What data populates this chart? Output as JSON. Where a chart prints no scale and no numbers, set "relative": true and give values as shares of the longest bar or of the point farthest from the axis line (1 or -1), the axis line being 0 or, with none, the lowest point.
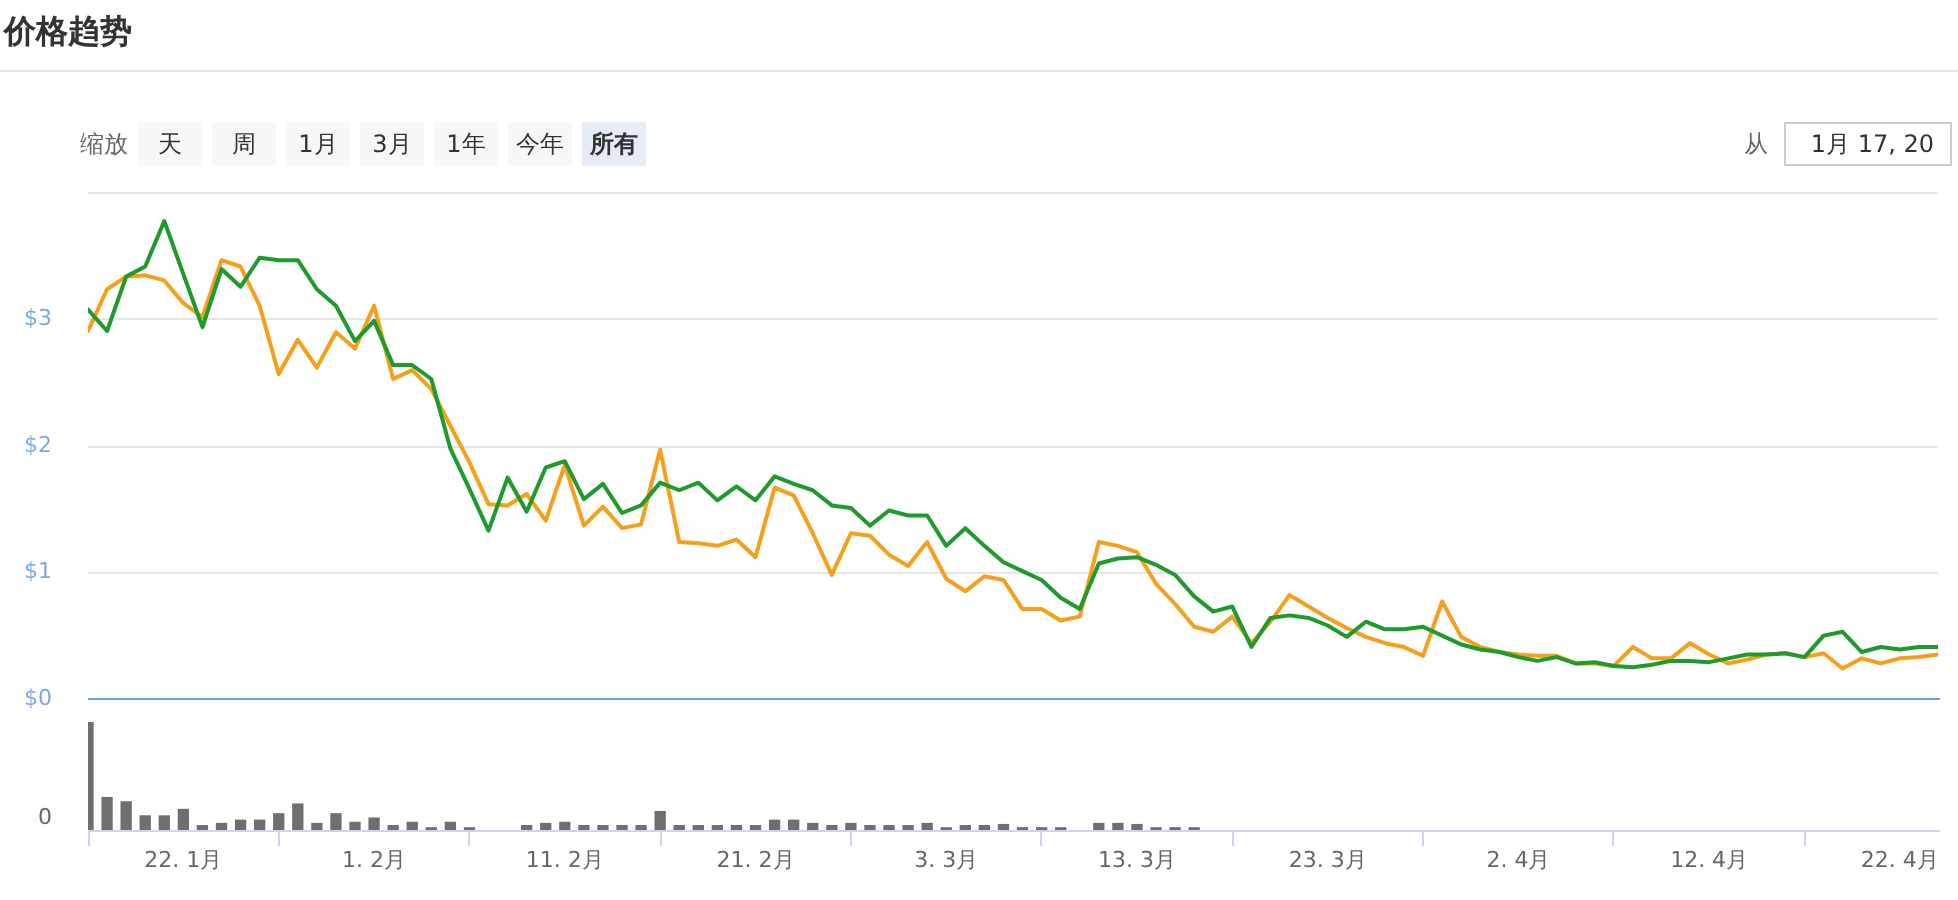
{
  "chart_data": [
    {
      "type": "line",
      "title": "价格趋势",
      "annotations": [
        "缩放",
        "天",
        "周",
        "1月",
        "3月",
        "1年",
        "今年",
        "所有",
        "从",
        "1月 17, 20"
      ],
      "x": [
        "--01-17",
        "--01-18",
        "--01-19",
        "--01-20",
        "--01-21",
        "--01-22",
        "--01-23",
        "--01-24",
        "--01-25",
        "--01-26",
        "--01-27",
        "--01-28",
        "--01-29",
        "--01-30",
        "--01-31",
        "--02-01",
        "--02-02",
        "--02-03",
        "--02-04",
        "--02-05",
        "--02-06",
        "--02-07",
        "--02-08",
        "--02-09",
        "--02-10",
        "--02-11",
        "--02-12",
        "--02-13",
        "--02-14",
        "--02-15",
        "--02-16",
        "--02-17",
        "--02-18",
        "--02-19",
        "--02-20",
        "--02-21",
        "--02-22",
        "--02-23",
        "--02-24",
        "--02-25",
        "--02-26",
        "--02-27",
        "--02-28",
        "--03-01",
        "--03-02",
        "--03-03",
        "--03-04",
        "--03-05",
        "--03-06",
        "--03-07",
        "--03-08",
        "--03-09",
        "--03-10",
        "--03-11",
        "--03-12",
        "--03-13",
        "--03-14",
        "--03-15",
        "--03-16",
        "--03-17",
        "--03-18",
        "--03-19",
        "--03-20",
        "--03-21",
        "--03-22",
        "--03-23",
        "--03-24",
        "--03-25",
        "--03-26",
        "--03-27",
        "--03-28",
        "--03-29",
        "--03-30",
        "--03-31",
        "--04-01",
        "--04-02",
        "--04-03",
        "--04-04",
        "--04-05",
        "--04-06",
        "--04-07",
        "--04-08",
        "--04-09",
        "--04-10",
        "--04-11",
        "--04-12",
        "--04-13",
        "--04-14",
        "--04-15",
        "--04-16",
        "--04-17",
        "--04-18",
        "--04-19",
        "--04-20",
        "--04-21",
        "--04-22",
        "--04-23",
        "--04-24"
      ],
      "xlim": [
        "--01-17",
        "--04-24"
      ],
      "tick_labels": "y",
      "ylim": [
        0,
        4
      ],
      "yticks": [
        {
          "value": 0,
          "label": "$0"
        },
        {
          "value": 1,
          "label": "$1"
        },
        {
          "value": 2,
          "label": "$2"
        },
        {
          "value": 3,
          "label": "$3"
        },
        {
          "value": 4,
          "label": null
        }
      ],
      "grid": "y",
      "marker": "none",
      "series": [
        {
          "color": "#1e9b2c",
          "values": [
            3.08,
            2.91,
            3.34,
            3.42,
            3.78,
            3.36,
            2.94,
            3.4,
            3.26,
            3.49,
            3.47,
            3.47,
            3.24,
            3.11,
            2.83,
            2.99,
            2.64,
            2.64,
            2.53,
            1.98,
            1.66,
            1.33,
            1.75,
            1.48,
            1.83,
            1.88,
            1.58,
            1.7,
            1.47,
            1.53,
            1.71,
            1.65,
            1.71,
            1.57,
            1.68,
            1.57,
            1.76,
            1.7,
            1.65,
            1.53,
            1.51,
            1.37,
            1.49,
            1.45,
            1.45,
            1.21,
            1.35,
            1.21,
            1.08,
            1.01,
            0.94,
            0.8,
            0.71,
            1.07,
            1.11,
            1.12,
            1.06,
            0.98,
            0.81,
            0.69,
            0.73,
            0.41,
            0.64,
            0.66,
            0.64,
            0.58,
            0.49,
            0.61,
            0.55,
            0.55,
            0.57,
            0.5,
            0.43,
            0.39,
            0.37,
            0.33,
            0.3,
            0.33,
            0.28,
            0.29,
            0.26,
            0.25,
            0.27,
            0.3,
            0.3,
            0.29,
            0.32,
            0.35,
            0.35,
            0.36,
            0.33,
            0.5,
            0.53,
            0.37,
            0.41,
            0.39,
            0.41,
            0.41
          ]
        },
        {
          "color": "#f59f1b",
          "values": [
            2.91,
            3.24,
            3.34,
            3.35,
            3.31,
            3.13,
            3.02,
            3.47,
            3.42,
            3.11,
            2.57,
            2.84,
            2.62,
            2.9,
            2.77,
            3.11,
            2.53,
            2.6,
            2.45,
            2.16,
            1.87,
            1.54,
            1.53,
            1.62,
            1.41,
            1.85,
            1.37,
            1.52,
            1.35,
            1.38,
            1.97,
            1.24,
            1.23,
            1.21,
            1.26,
            1.12,
            1.67,
            1.61,
            1.31,
            0.98,
            1.31,
            1.29,
            1.14,
            1.05,
            1.24,
            0.95,
            0.85,
            0.97,
            0.94,
            0.71,
            0.71,
            0.62,
            0.65,
            1.24,
            1.21,
            1.16,
            0.91,
            0.75,
            0.57,
            0.53,
            0.65,
            0.44,
            0.61,
            0.82,
            0.73,
            0.64,
            0.56,
            0.49,
            0.44,
            0.41,
            0.34,
            0.77,
            0.49,
            0.41,
            0.37,
            0.35,
            0.34,
            0.34,
            0.28,
            0.28,
            0.26,
            0.41,
            0.32,
            0.32,
            0.44,
            0.35,
            0.28,
            0.31,
            0.35,
            0.36,
            0.33,
            0.36,
            0.24,
            0.32,
            0.28,
            0.32,
            0.33,
            0.35
          ]
        }
      ]
    },
    {
      "type": "bar",
      "relative": true,
      "annotations": [
        "0"
      ],
      "x": [
        "--01-17",
        "--01-18",
        "--01-19",
        "--01-20",
        "--01-21",
        "--01-22",
        "--01-23",
        "--01-24",
        "--01-25",
        "--01-26",
        "--01-27",
        "--01-28",
        "--01-29",
        "--01-30",
        "--01-31",
        "--02-01",
        "--02-02",
        "--02-03",
        "--02-04",
        "--02-05",
        "--02-06",
        "--02-07",
        "--02-08",
        "--02-09",
        "--02-10",
        "--02-11",
        "--02-12",
        "--02-13",
        "--02-14",
        "--02-15",
        "--02-16",
        "--02-17",
        "--02-18",
        "--02-19",
        "--02-20",
        "--02-21",
        "--02-22",
        "--02-23",
        "--02-24",
        "--02-25",
        "--02-26",
        "--02-27",
        "--02-28",
        "--03-01",
        "--03-02",
        "--03-03",
        "--03-04",
        "--03-05",
        "--03-06",
        "--03-07",
        "--03-08",
        "--03-09",
        "--03-10",
        "--03-11",
        "--03-12",
        "--03-13",
        "--03-14",
        "--03-15",
        "--03-16"
      ],
      "values": [
        1,
        0.3,
        0.26,
        0.13,
        0.13,
        0.19,
        0.04,
        0.06,
        0.09,
        0.09,
        0.15,
        0.24,
        0.06,
        0.15,
        0.07,
        0.11,
        0.04,
        0.07,
        0.02,
        0.07,
        0.02,
        null,
        null,
        0.04,
        0.06,
        0.07,
        0.04,
        0.04,
        0.04,
        0.04,
        0.17,
        0.04,
        0.04,
        0.04,
        0.04,
        0.04,
        0.09,
        0.09,
        0.06,
        0.04,
        0.06,
        0.04,
        0.04,
        0.04,
        0.06,
        0.02,
        0.04,
        0.04,
        0.05,
        0.02,
        0.02,
        0.02,
        null,
        0.06,
        0.06,
        0.05,
        0.02,
        0.02,
        0.02
      ],
      "color": "#6f6f6f",
      "xlim": [
        "--01-17",
        "--04-24"
      ],
      "xticks": [
        {
          "value": "--01-22",
          "label": "22. 1月"
        },
        {
          "value": "--02-01",
          "label": "1. 2月"
        },
        {
          "value": "--02-11",
          "label": "11. 2月"
        },
        {
          "value": "--02-21",
          "label": "21. 2月"
        },
        {
          "value": "--03-03",
          "label": "3. 3月"
        },
        {
          "value": "--03-13",
          "label": "13. 3月"
        },
        {
          "value": "--03-23",
          "label": "23. 3月"
        },
        {
          "value": "--04-02",
          "label": "2. 4月"
        },
        {
          "value": "--04-12",
          "label": "12. 4月"
        },
        {
          "value": "--04-22",
          "label": "22. 4月"
        }
      ]
    }
  ]
}
